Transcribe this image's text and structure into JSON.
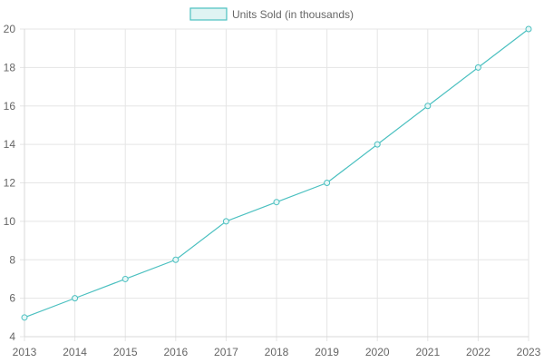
{
  "chart_data": {
    "type": "line",
    "x": [
      "2013",
      "2014",
      "2015",
      "2016",
      "2017",
      "2018",
      "2019",
      "2020",
      "2021",
      "2022",
      "2023"
    ],
    "series": [
      {
        "name": "Units Sold (in thousands)",
        "values": [
          5,
          6,
          7,
          8,
          10,
          11,
          12,
          14,
          16,
          18,
          20
        ]
      }
    ],
    "ylim": [
      4,
      20
    ],
    "yticks": [
      4,
      6,
      8,
      10,
      12,
      14,
      16,
      18,
      20
    ],
    "grid": true,
    "legend_position": "top-center",
    "line_color": "#4bc0c0",
    "fill_color": "#dff4f3",
    "point_fill": "#e6f6f6"
  }
}
